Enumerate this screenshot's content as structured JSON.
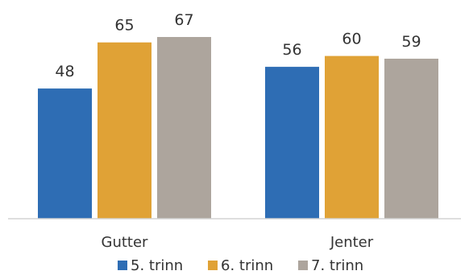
{
  "chart_data": {
    "type": "bar",
    "categories": [
      "Gutter",
      "Jenter"
    ],
    "series": [
      {
        "name": "5. trinn",
        "values": [
          48,
          56
        ],
        "color": "#2E6DB4"
      },
      {
        "name": "6. trinn",
        "values": [
          65,
          60
        ],
        "color": "#E0A236"
      },
      {
        "name": "7. trinn",
        "values": [
          67,
          59
        ],
        "color": "#ADA59D"
      }
    ],
    "title": "",
    "xlabel": "",
    "ylabel": "",
    "ylim": [
      0,
      67
    ],
    "grid": false,
    "data_labels": true,
    "legend": "bottom"
  }
}
